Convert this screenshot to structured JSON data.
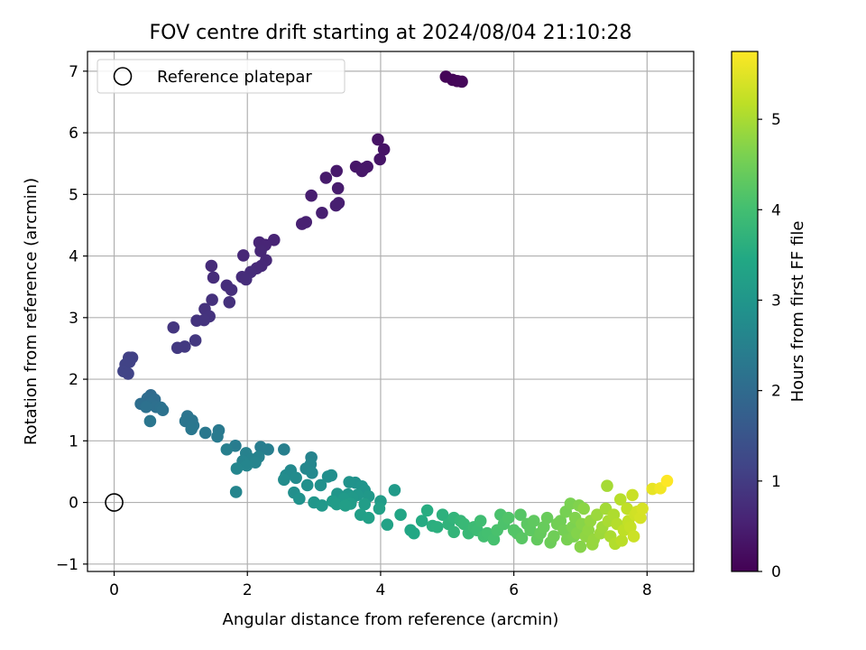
{
  "chart_data": {
    "type": "scatter",
    "title": "FOV centre drift starting at 2024/08/04 21:10:28",
    "xlabel": "Angular distance from reference (arcmin)",
    "ylabel": "Rotation from reference (arcmin)",
    "xlim": [
      -0.4,
      8.7
    ],
    "ylim": [
      -1.12,
      7.32
    ],
    "xticks": [
      0,
      2,
      4,
      6,
      8
    ],
    "yticks": [
      -1,
      0,
      1,
      2,
      3,
      4,
      5,
      6,
      7
    ],
    "grid": true,
    "legend": {
      "position": "top-left",
      "entries": [
        {
          "label": "Reference platepar",
          "marker": "open-circle"
        }
      ]
    },
    "reference_point": {
      "x": 0,
      "y": 0
    },
    "colorbar": {
      "label": "Hours from first FF file",
      "colormap": "viridis",
      "range": [
        0,
        5.75
      ],
      "ticks": [
        0,
        1,
        2,
        3,
        4,
        5
      ]
    },
    "points": [
      {
        "x": 4.98,
        "y": 6.91,
        "c": 0.05
      },
      {
        "x": 5.08,
        "y": 6.86,
        "c": 0.07
      },
      {
        "x": 5.15,
        "y": 6.84,
        "c": 0.08
      },
      {
        "x": 5.22,
        "y": 6.83,
        "c": 0.1
      },
      {
        "x": 3.96,
        "y": 5.89,
        "c": 0.3
      },
      {
        "x": 4.05,
        "y": 5.73,
        "c": 0.32
      },
      {
        "x": 3.99,
        "y": 5.57,
        "c": 0.33
      },
      {
        "x": 3.8,
        "y": 5.45,
        "c": 0.36
      },
      {
        "x": 3.72,
        "y": 5.38,
        "c": 0.37
      },
      {
        "x": 3.63,
        "y": 5.45,
        "c": 0.35
      },
      {
        "x": 3.75,
        "y": 5.42,
        "c": 0.36
      },
      {
        "x": 3.34,
        "y": 5.38,
        "c": 0.4
      },
      {
        "x": 3.18,
        "y": 5.27,
        "c": 0.42
      },
      {
        "x": 3.36,
        "y": 5.1,
        "c": 0.44
      },
      {
        "x": 2.96,
        "y": 4.98,
        "c": 0.47
      },
      {
        "x": 3.37,
        "y": 4.86,
        "c": 0.48
      },
      {
        "x": 3.33,
        "y": 4.82,
        "c": 0.49
      },
      {
        "x": 3.12,
        "y": 4.7,
        "c": 0.5
      },
      {
        "x": 2.88,
        "y": 4.55,
        "c": 0.52
      },
      {
        "x": 2.82,
        "y": 4.52,
        "c": 0.53
      },
      {
        "x": 2.4,
        "y": 4.26,
        "c": 0.58
      },
      {
        "x": 2.18,
        "y": 4.22,
        "c": 0.6
      },
      {
        "x": 2.27,
        "y": 4.18,
        "c": 0.6
      },
      {
        "x": 2.2,
        "y": 4.08,
        "c": 0.62
      },
      {
        "x": 1.94,
        "y": 4.01,
        "c": 0.64
      },
      {
        "x": 2.28,
        "y": 3.93,
        "c": 0.65
      },
      {
        "x": 2.21,
        "y": 3.84,
        "c": 0.67
      },
      {
        "x": 2.14,
        "y": 3.8,
        "c": 0.68
      },
      {
        "x": 1.46,
        "y": 3.84,
        "c": 0.7
      },
      {
        "x": 2.05,
        "y": 3.74,
        "c": 0.71
      },
      {
        "x": 1.92,
        "y": 3.66,
        "c": 0.72
      },
      {
        "x": 1.98,
        "y": 3.62,
        "c": 0.73
      },
      {
        "x": 1.49,
        "y": 3.65,
        "c": 0.74
      },
      {
        "x": 1.69,
        "y": 3.52,
        "c": 0.76
      },
      {
        "x": 1.76,
        "y": 3.45,
        "c": 0.77
      },
      {
        "x": 1.47,
        "y": 3.29,
        "c": 0.8
      },
      {
        "x": 1.73,
        "y": 3.25,
        "c": 0.81
      },
      {
        "x": 1.36,
        "y": 3.14,
        "c": 0.83
      },
      {
        "x": 1.43,
        "y": 3.02,
        "c": 0.85
      },
      {
        "x": 1.35,
        "y": 2.96,
        "c": 0.86
      },
      {
        "x": 1.24,
        "y": 2.95,
        "c": 0.87
      },
      {
        "x": 0.89,
        "y": 2.84,
        "c": 0.9
      },
      {
        "x": 1.22,
        "y": 2.63,
        "c": 0.93
      },
      {
        "x": 1.06,
        "y": 2.53,
        "c": 0.95
      },
      {
        "x": 0.95,
        "y": 2.51,
        "c": 0.96
      },
      {
        "x": 0.27,
        "y": 2.35,
        "c": 1.1
      },
      {
        "x": 0.23,
        "y": 2.28,
        "c": 1.12
      },
      {
        "x": 0.17,
        "y": 2.24,
        "c": 1.13
      },
      {
        "x": 0.22,
        "y": 2.35,
        "c": 1.1
      },
      {
        "x": 0.14,
        "y": 2.13,
        "c": 1.15
      },
      {
        "x": 0.21,
        "y": 2.09,
        "c": 1.16
      },
      {
        "x": 0.55,
        "y": 1.74,
        "c": 2.0
      },
      {
        "x": 0.5,
        "y": 1.69,
        "c": 2.02
      },
      {
        "x": 0.61,
        "y": 1.67,
        "c": 2.05
      },
      {
        "x": 0.4,
        "y": 1.6,
        "c": 2.07
      },
      {
        "x": 0.55,
        "y": 1.6,
        "c": 2.09
      },
      {
        "x": 0.63,
        "y": 1.55,
        "c": 2.11
      },
      {
        "x": 0.48,
        "y": 1.55,
        "c": 2.13
      },
      {
        "x": 0.7,
        "y": 1.54,
        "c": 2.14
      },
      {
        "x": 0.73,
        "y": 1.5,
        "c": 2.16
      },
      {
        "x": 1.1,
        "y": 1.4,
        "c": 2.2
      },
      {
        "x": 1.17,
        "y": 1.33,
        "c": 2.22
      },
      {
        "x": 1.07,
        "y": 1.32,
        "c": 2.23
      },
      {
        "x": 0.54,
        "y": 1.32,
        "c": 2.25
      },
      {
        "x": 1.19,
        "y": 1.25,
        "c": 2.26
      },
      {
        "x": 1.16,
        "y": 1.19,
        "c": 2.28
      },
      {
        "x": 1.37,
        "y": 1.13,
        "c": 2.3
      },
      {
        "x": 1.57,
        "y": 1.17,
        "c": 2.32
      },
      {
        "x": 1.55,
        "y": 1.07,
        "c": 2.34
      },
      {
        "x": 1.82,
        "y": 0.92,
        "c": 2.4
      },
      {
        "x": 2.2,
        "y": 0.9,
        "c": 2.42
      },
      {
        "x": 2.31,
        "y": 0.86,
        "c": 2.44
      },
      {
        "x": 1.69,
        "y": 0.86,
        "c": 2.45
      },
      {
        "x": 2.55,
        "y": 0.86,
        "c": 2.47
      },
      {
        "x": 1.98,
        "y": 0.8,
        "c": 2.5
      },
      {
        "x": 2.17,
        "y": 0.74,
        "c": 2.52
      },
      {
        "x": 2.06,
        "y": 0.7,
        "c": 2.53
      },
      {
        "x": 2.96,
        "y": 0.73,
        "c": 2.56
      },
      {
        "x": 1.93,
        "y": 0.67,
        "c": 2.55
      },
      {
        "x": 2.12,
        "y": 0.65,
        "c": 2.57
      },
      {
        "x": 1.99,
        "y": 0.6,
        "c": 2.6
      },
      {
        "x": 2.95,
        "y": 0.62,
        "c": 2.63
      },
      {
        "x": 1.84,
        "y": 0.55,
        "c": 2.62
      },
      {
        "x": 2.88,
        "y": 0.55,
        "c": 2.65
      },
      {
        "x": 2.65,
        "y": 0.52,
        "c": 2.68
      },
      {
        "x": 2.97,
        "y": 0.48,
        "c": 2.7
      },
      {
        "x": 3.26,
        "y": 0.44,
        "c": 2.8
      },
      {
        "x": 2.58,
        "y": 0.44,
        "c": 2.72
      },
      {
        "x": 2.73,
        "y": 0.4,
        "c": 2.74
      },
      {
        "x": 3.21,
        "y": 0.42,
        "c": 2.82
      },
      {
        "x": 2.55,
        "y": 0.37,
        "c": 2.76
      },
      {
        "x": 3.62,
        "y": 0.32,
        "c": 2.9
      },
      {
        "x": 3.53,
        "y": 0.33,
        "c": 2.92
      },
      {
        "x": 3.1,
        "y": 0.28,
        "c": 2.88
      },
      {
        "x": 2.9,
        "y": 0.28,
        "c": 2.86
      },
      {
        "x": 3.72,
        "y": 0.26,
        "c": 2.95
      },
      {
        "x": 4.21,
        "y": 0.2,
        "c": 3.1
      },
      {
        "x": 3.76,
        "y": 0.2,
        "c": 2.97
      },
      {
        "x": 2.7,
        "y": 0.16,
        "c": 2.84
      },
      {
        "x": 1.83,
        "y": 0.17,
        "c": 2.6
      },
      {
        "x": 3.35,
        "y": 0.14,
        "c": 3.0
      },
      {
        "x": 3.51,
        "y": 0.13,
        "c": 3.02
      },
      {
        "x": 3.65,
        "y": 0.12,
        "c": 3.04
      },
      {
        "x": 3.82,
        "y": 0.1,
        "c": 3.06
      },
      {
        "x": 3.58,
        "y": 0.08,
        "c": 3.08
      },
      {
        "x": 3.45,
        "y": 0.06,
        "c": 3.1
      },
      {
        "x": 2.78,
        "y": 0.06,
        "c": 2.9
      },
      {
        "x": 4.0,
        "y": 0.02,
        "c": 3.15
      },
      {
        "x": 3.28,
        "y": 0.02,
        "c": 3.12
      },
      {
        "x": 3.0,
        "y": 0.0,
        "c": 3.0
      },
      {
        "x": 3.12,
        "y": -0.05,
        "c": 3.05
      },
      {
        "x": 3.34,
        "y": -0.03,
        "c": 3.14
      },
      {
        "x": 3.55,
        "y": -0.02,
        "c": 3.16
      },
      {
        "x": 3.76,
        "y": -0.03,
        "c": 3.18
      },
      {
        "x": 3.47,
        "y": -0.05,
        "c": 3.2
      },
      {
        "x": 3.7,
        "y": -0.2,
        "c": 3.22
      },
      {
        "x": 3.82,
        "y": -0.25,
        "c": 3.24
      },
      {
        "x": 3.98,
        "y": -0.1,
        "c": 3.26
      },
      {
        "x": 4.1,
        "y": -0.36,
        "c": 3.3
      },
      {
        "x": 4.45,
        "y": -0.45,
        "c": 3.4
      },
      {
        "x": 4.5,
        "y": -0.5,
        "c": 3.42
      },
      {
        "x": 4.3,
        "y": -0.2,
        "c": 3.38
      },
      {
        "x": 4.62,
        "y": -0.3,
        "c": 3.5
      },
      {
        "x": 4.7,
        "y": -0.13,
        "c": 3.55
      },
      {
        "x": 4.78,
        "y": -0.38,
        "c": 3.6
      },
      {
        "x": 4.85,
        "y": -0.4,
        "c": 3.62
      },
      {
        "x": 4.93,
        "y": -0.2,
        "c": 3.66
      },
      {
        "x": 5.02,
        "y": -0.35,
        "c": 3.7
      },
      {
        "x": 5.1,
        "y": -0.25,
        "c": 3.74
      },
      {
        "x": 5.1,
        "y": -0.48,
        "c": 3.76
      },
      {
        "x": 5.2,
        "y": -0.3,
        "c": 3.8
      },
      {
        "x": 5.25,
        "y": -0.35,
        "c": 3.84
      },
      {
        "x": 5.32,
        "y": -0.5,
        "c": 3.86
      },
      {
        "x": 5.4,
        "y": -0.4,
        "c": 3.9
      },
      {
        "x": 5.45,
        "y": -0.45,
        "c": 3.92
      },
      {
        "x": 5.5,
        "y": -0.3,
        "c": 3.96
      },
      {
        "x": 5.55,
        "y": -0.55,
        "c": 4.0
      },
      {
        "x": 5.6,
        "y": -0.5,
        "c": 4.02
      },
      {
        "x": 5.7,
        "y": -0.6,
        "c": 4.05
      },
      {
        "x": 5.75,
        "y": -0.45,
        "c": 4.08
      },
      {
        "x": 5.8,
        "y": -0.2,
        "c": 4.1
      },
      {
        "x": 5.85,
        "y": -0.35,
        "c": 4.12
      },
      {
        "x": 5.92,
        "y": -0.25,
        "c": 4.15
      },
      {
        "x": 6.0,
        "y": -0.45,
        "c": 4.18
      },
      {
        "x": 6.05,
        "y": -0.5,
        "c": 4.2
      },
      {
        "x": 6.1,
        "y": -0.2,
        "c": 4.22
      },
      {
        "x": 6.12,
        "y": -0.58,
        "c": 4.25
      },
      {
        "x": 6.2,
        "y": -0.35,
        "c": 4.28
      },
      {
        "x": 6.25,
        "y": -0.45,
        "c": 4.3
      },
      {
        "x": 6.3,
        "y": -0.3,
        "c": 4.32
      },
      {
        "x": 6.35,
        "y": -0.6,
        "c": 4.35
      },
      {
        "x": 6.4,
        "y": -0.5,
        "c": 4.38
      },
      {
        "x": 6.45,
        "y": -0.4,
        "c": 4.4
      },
      {
        "x": 6.5,
        "y": -0.25,
        "c": 4.42
      },
      {
        "x": 6.55,
        "y": -0.65,
        "c": 4.45
      },
      {
        "x": 6.6,
        "y": -0.55,
        "c": 4.48
      },
      {
        "x": 6.65,
        "y": -0.35,
        "c": 4.5
      },
      {
        "x": 6.7,
        "y": -0.3,
        "c": 4.52
      },
      {
        "x": 6.75,
        "y": -0.45,
        "c": 4.55
      },
      {
        "x": 6.8,
        "y": -0.6,
        "c": 4.58
      },
      {
        "x": 6.85,
        "y": -0.02,
        "c": 4.6
      },
      {
        "x": 6.88,
        "y": -0.4,
        "c": 4.62
      },
      {
        "x": 6.92,
        "y": -0.25,
        "c": 4.65
      },
      {
        "x": 6.95,
        "y": -0.5,
        "c": 4.68
      },
      {
        "x": 7.0,
        "y": -0.72,
        "c": 4.7
      },
      {
        "x": 7.02,
        "y": -0.35,
        "c": 4.72
      },
      {
        "x": 7.05,
        "y": -0.1,
        "c": 4.75
      },
      {
        "x": 7.08,
        "y": -0.55,
        "c": 4.78
      },
      {
        "x": 7.12,
        "y": -0.45,
        "c": 4.8
      },
      {
        "x": 7.15,
        "y": -0.3,
        "c": 4.82
      },
      {
        "x": 7.2,
        "y": -0.6,
        "c": 4.85
      },
      {
        "x": 7.25,
        "y": -0.2,
        "c": 4.88
      },
      {
        "x": 7.3,
        "y": -0.5,
        "c": 4.9
      },
      {
        "x": 7.33,
        "y": -0.4,
        "c": 4.92
      },
      {
        "x": 7.38,
        "y": -0.1,
        "c": 4.95
      },
      {
        "x": 7.4,
        "y": 0.27,
        "c": 4.97
      },
      {
        "x": 7.42,
        "y": -0.3,
        "c": 5.0
      },
      {
        "x": 7.45,
        "y": -0.55,
        "c": 5.02
      },
      {
        "x": 7.5,
        "y": -0.2,
        "c": 5.05
      },
      {
        "x": 7.52,
        "y": -0.67,
        "c": 5.08
      },
      {
        "x": 7.55,
        "y": -0.35,
        "c": 5.1
      },
      {
        "x": 7.6,
        "y": 0.05,
        "c": 5.12
      },
      {
        "x": 7.62,
        "y": -0.62,
        "c": 5.15
      },
      {
        "x": 7.65,
        "y": -0.45,
        "c": 5.18
      },
      {
        "x": 7.7,
        "y": -0.1,
        "c": 5.2
      },
      {
        "x": 7.72,
        "y": -0.3,
        "c": 5.22
      },
      {
        "x": 7.75,
        "y": -0.4,
        "c": 5.25
      },
      {
        "x": 7.78,
        "y": 0.12,
        "c": 5.28
      },
      {
        "x": 7.8,
        "y": -0.55,
        "c": 5.3
      },
      {
        "x": 7.82,
        "y": -0.2,
        "c": 5.32
      },
      {
        "x": 7.85,
        "y": -0.15,
        "c": 5.35
      },
      {
        "x": 7.9,
        "y": -0.25,
        "c": 5.38
      },
      {
        "x": 7.93,
        "y": -0.1,
        "c": 5.4
      },
      {
        "x": 8.08,
        "y": 0.22,
        "c": 5.55
      },
      {
        "x": 8.2,
        "y": 0.23,
        "c": 5.65
      },
      {
        "x": 8.3,
        "y": 0.35,
        "c": 5.75
      },
      {
        "x": 6.9,
        "y": -0.55,
        "c": 4.6
      },
      {
        "x": 6.78,
        "y": -0.15,
        "c": 4.56
      },
      {
        "x": 7.18,
        "y": -0.68,
        "c": 4.84
      },
      {
        "x": 6.98,
        "y": -0.05,
        "c": 4.66
      }
    ]
  }
}
